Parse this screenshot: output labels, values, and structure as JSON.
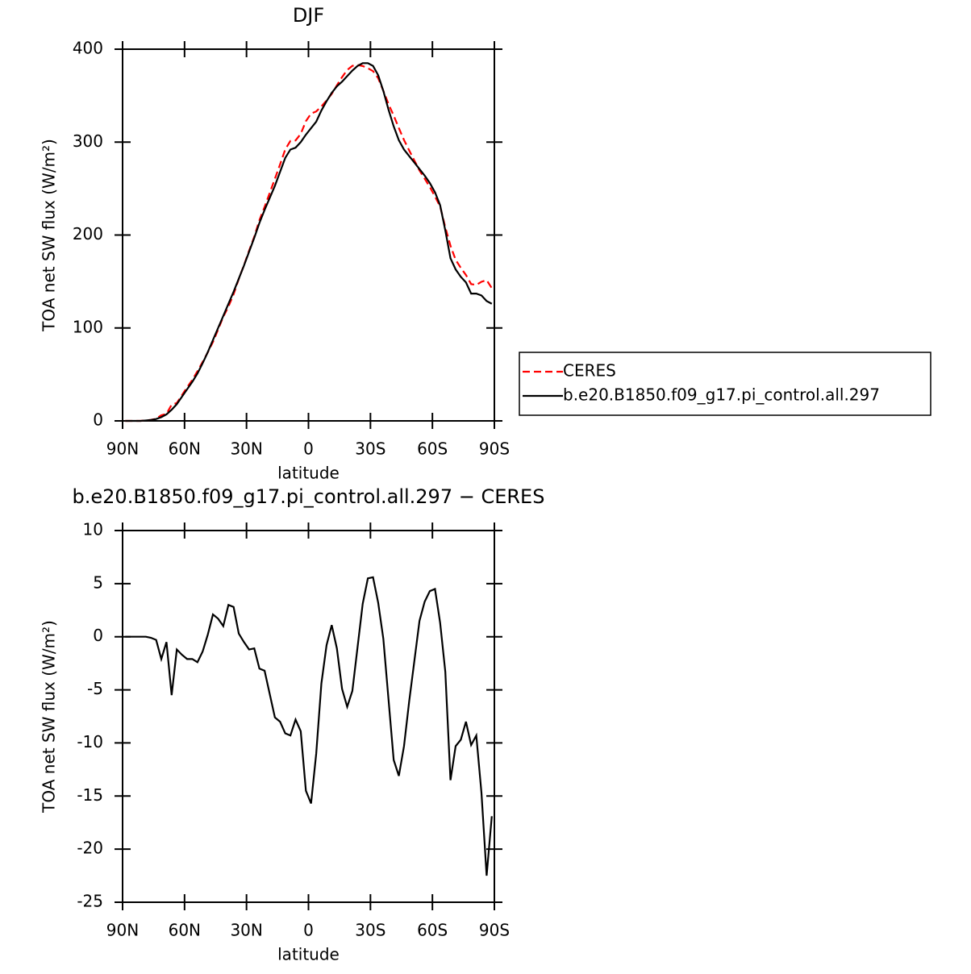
{
  "chart_data": [
    {
      "type": "line",
      "title": "DJF",
      "xlabel": "latitude",
      "ylabel": "TOA net SW flux (W/m²)",
      "x": [
        88.75,
        86.25,
        83.75,
        81.25,
        78.75,
        76.25,
        73.75,
        71.25,
        68.75,
        66.25,
        63.75,
        61.25,
        58.75,
        56.25,
        53.75,
        51.25,
        48.75,
        46.25,
        43.75,
        41.25,
        38.75,
        36.25,
        33.75,
        31.25,
        28.75,
        26.25,
        23.75,
        21.25,
        18.75,
        16.25,
        13.75,
        11.25,
        8.75,
        6.25,
        3.75,
        1.25,
        -1.25,
        -3.75,
        -6.25,
        -8.75,
        -11.25,
        -13.75,
        -16.25,
        -18.75,
        -21.25,
        -23.75,
        -26.25,
        -28.75,
        -31.25,
        -33.75,
        -36.25,
        -38.75,
        -41.25,
        -43.75,
        -46.25,
        -48.75,
        -51.25,
        -53.75,
        -56.25,
        -58.75,
        -61.25,
        -63.75,
        -66.25,
        -68.75,
        -71.25,
        -73.75,
        -76.25,
        -78.75,
        -81.25,
        -83.75,
        -86.25,
        -88.75
      ],
      "series": [
        {
          "name": "CERES",
          "color": "#ff0000",
          "line_style": "dashed",
          "values": [
            0,
            0,
            0,
            0,
            0.5,
            1.1,
            2.3,
            6.1,
            7.5,
            17.5,
            19.2,
            27.7,
            36.1,
            44.1,
            53.4,
            63.4,
            73.8,
            84.9,
            98.3,
            112,
            123,
            136.2,
            152.7,
            167.5,
            183.2,
            198.1,
            216,
            230.2,
            245.4,
            260.6,
            276,
            292.1,
            301.3,
            301.8,
            308.9,
            322.5,
            330.7,
            333,
            338.4,
            344.8,
            351.9,
            361.1,
            369.9,
            377.6,
            382.1,
            383,
            381.9,
            379.5,
            376.4,
            368.8,
            355.2,
            340.9,
            328.6,
            315.1,
            302.3,
            291.1,
            280.3,
            269.5,
            260.7,
            251.7,
            241.5,
            230.7,
            208.3,
            188.5,
            173.3,
            164.7,
            157,
            147.2,
            146.3,
            149.7,
            151.5,
            142.9
          ]
        },
        {
          "name": "b.e20.B1850.f09_g17.pi_control.all.297",
          "color": "#000000",
          "line_style": "solid",
          "values": [
            0,
            0,
            0,
            0,
            0.5,
            1,
            2,
            4,
            7,
            12,
            18,
            26,
            34,
            42,
            51,
            62,
            74,
            87,
            100,
            113,
            126,
            139,
            153,
            167,
            182,
            197,
            213,
            227,
            240,
            253,
            268,
            283,
            292,
            294,
            300,
            308,
            315,
            322,
            334,
            344,
            353,
            360,
            365,
            371,
            377,
            382,
            385,
            385,
            382,
            372,
            355,
            335,
            317,
            302,
            292,
            285,
            278,
            271,
            264,
            256,
            246,
            232,
            205,
            175,
            163,
            155,
            149,
            137,
            137,
            135,
            129,
            126
          ]
        }
      ],
      "xlim": [
        90,
        -90
      ],
      "xticks": [
        {
          "value": 90,
          "label": "90N"
        },
        {
          "value": 60,
          "label": "60N"
        },
        {
          "value": 30,
          "label": "30N"
        },
        0,
        {
          "value": -30,
          "label": "30S"
        },
        {
          "value": -60,
          "label": "60S"
        },
        {
          "value": -90,
          "label": "90S"
        }
      ],
      "ylim": [
        0,
        400
      ],
      "yticks": [
        0,
        100,
        200,
        300,
        400
      ],
      "legend": "outside-right"
    },
    {
      "type": "line",
      "title": "b.e20.B1850.f09_g17.pi_control.all.297 − CERES",
      "xlabel": "latitude",
      "ylabel": "TOA net SW flux (W/m²)",
      "x": [
        88.75,
        86.25,
        83.75,
        81.25,
        78.75,
        76.25,
        73.75,
        71.25,
        68.75,
        66.25,
        63.75,
        61.25,
        58.75,
        56.25,
        53.75,
        51.25,
        48.75,
        46.25,
        43.75,
        41.25,
        38.75,
        36.25,
        33.75,
        31.25,
        28.75,
        26.25,
        23.75,
        21.25,
        18.75,
        16.25,
        13.75,
        11.25,
        8.75,
        6.25,
        3.75,
        1.25,
        -1.25,
        -3.75,
        -6.25,
        -8.75,
        -11.25,
        -13.75,
        -16.25,
        -18.75,
        -21.25,
        -23.75,
        -26.25,
        -28.75,
        -31.25,
        -33.75,
        -36.25,
        -38.75,
        -41.25,
        -43.75,
        -46.25,
        -48.75,
        -51.25,
        -53.75,
        -56.25,
        -58.75,
        -61.25,
        -63.75,
        -66.25,
        -68.75,
        -71.25,
        -73.75,
        -76.25,
        -78.75,
        -81.25,
        -83.75,
        -86.25,
        -88.75
      ],
      "series": [
        {
          "color": "#000000",
          "line_style": "solid",
          "values": [
            0,
            0,
            0,
            0,
            0,
            -0.1,
            -0.3,
            -2.1,
            -0.5,
            -5.5,
            -1.2,
            -1.7,
            -2.1,
            -2.1,
            -2.4,
            -1.4,
            0.2,
            2.1,
            1.7,
            1.0,
            3.0,
            2.8,
            0.3,
            -0.5,
            -1.2,
            -1.1,
            -3.0,
            -3.2,
            -5.4,
            -7.6,
            -8.0,
            -9.1,
            -9.3,
            -7.8,
            -8.9,
            -14.5,
            -15.7,
            -11.0,
            -4.4,
            -0.8,
            1.1,
            -1.1,
            -4.9,
            -6.6,
            -5.1,
            -1.0,
            3.1,
            5.5,
            5.6,
            3.2,
            -0.2,
            -5.9,
            -11.6,
            -13.1,
            -10.3,
            -6.1,
            -2.3,
            1.5,
            3.3,
            4.3,
            4.5,
            1.3,
            -3.3,
            -13.5,
            -10.3,
            -9.7,
            -8.0,
            -10.2,
            -9.3,
            -14.7,
            -22.5,
            -16.9
          ]
        }
      ],
      "xlim": [
        90,
        -90
      ],
      "xticks": [
        {
          "value": 90,
          "label": "90N"
        },
        {
          "value": 60,
          "label": "60N"
        },
        {
          "value": 30,
          "label": "30N"
        },
        0,
        {
          "value": -30,
          "label": "30S"
        },
        {
          "value": -60,
          "label": "60S"
        },
        {
          "value": -90,
          "label": "90S"
        }
      ],
      "ylim": [
        -25,
        10
      ],
      "yticks": [
        -25,
        -20,
        -15,
        -10,
        -5,
        0,
        5,
        10
      ]
    }
  ]
}
